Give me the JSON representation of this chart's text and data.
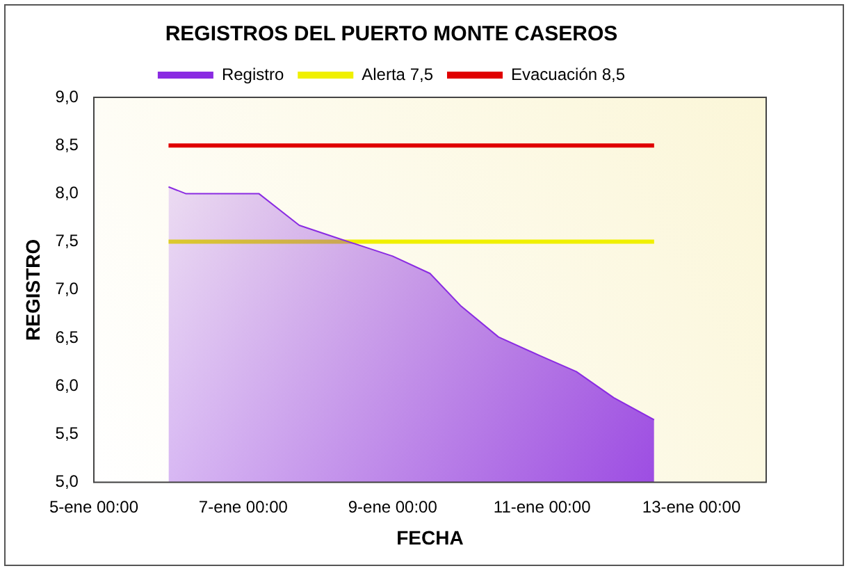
{
  "chart_data": {
    "type": "area",
    "title": "REGISTROS DEL PUERTO MONTE CASEROS",
    "xlabel": "FECHA",
    "ylabel": "REGISTRO",
    "series": [
      {
        "name": "Registro",
        "color": "#8a2be2",
        "x": [
          "--01-06T00:00",
          "--01-06T05:30",
          "--01-07T05:00",
          "--01-07T18:00",
          "--01-08T07:00",
          "--01-09T00:00",
          "--01-09T12:00",
          "--01-09T22:00",
          "--01-10T10:00",
          "--01-10T23:00",
          "--01-11T11:00",
          "--01-11T23:00",
          "--01-12T12:00"
        ],
        "values": [
          8.07,
          8.0,
          8.0,
          7.67,
          7.53,
          7.35,
          7.17,
          6.83,
          6.51,
          6.32,
          6.15,
          5.88,
          5.65
        ]
      },
      {
        "name": "Alerta 7,5",
        "type": "line",
        "color": "#f0f000",
        "x": [
          "--01-06T00:00",
          "--01-12T12:00"
        ],
        "values": [
          7.5,
          7.5
        ]
      },
      {
        "name": "Evacuación 8,5",
        "type": "line",
        "color": "#e00000",
        "x": [
          "--01-06T00:00",
          "--01-12T12:00"
        ],
        "values": [
          8.5,
          8.5
        ]
      }
    ],
    "xlim": [
      "--01-05T00:00",
      "--01-14T00:00"
    ],
    "xticks": [
      {
        "value": "--01-05T00:00",
        "label": "5-ene 00:00"
      },
      {
        "value": "--01-07T00:00",
        "label": "7-ene 00:00"
      },
      {
        "value": "--01-09T00:00",
        "label": "9-ene 00:00"
      },
      {
        "value": "--01-11T00:00",
        "label": "11-ene 00:00"
      },
      {
        "value": "--01-13T00:00",
        "label": "13-ene 00:00"
      }
    ],
    "ylim": [
      5,
      9
    ],
    "yticks": [
      {
        "value": 5,
        "label": "5,0"
      },
      {
        "value": 5.5,
        "label": "5,5"
      },
      {
        "value": 6,
        "label": "6,0"
      },
      {
        "value": 6.5,
        "label": "6,5"
      },
      {
        "value": 7,
        "label": "7,0"
      },
      {
        "value": 7.5,
        "label": "7,5"
      },
      {
        "value": 8,
        "label": "8,0"
      },
      {
        "value": 8.5,
        "label": "8,5"
      },
      {
        "value": 9,
        "label": "9,0"
      }
    ],
    "grid": false,
    "legend": "top",
    "marker": "none",
    "line_style": "solid"
  }
}
